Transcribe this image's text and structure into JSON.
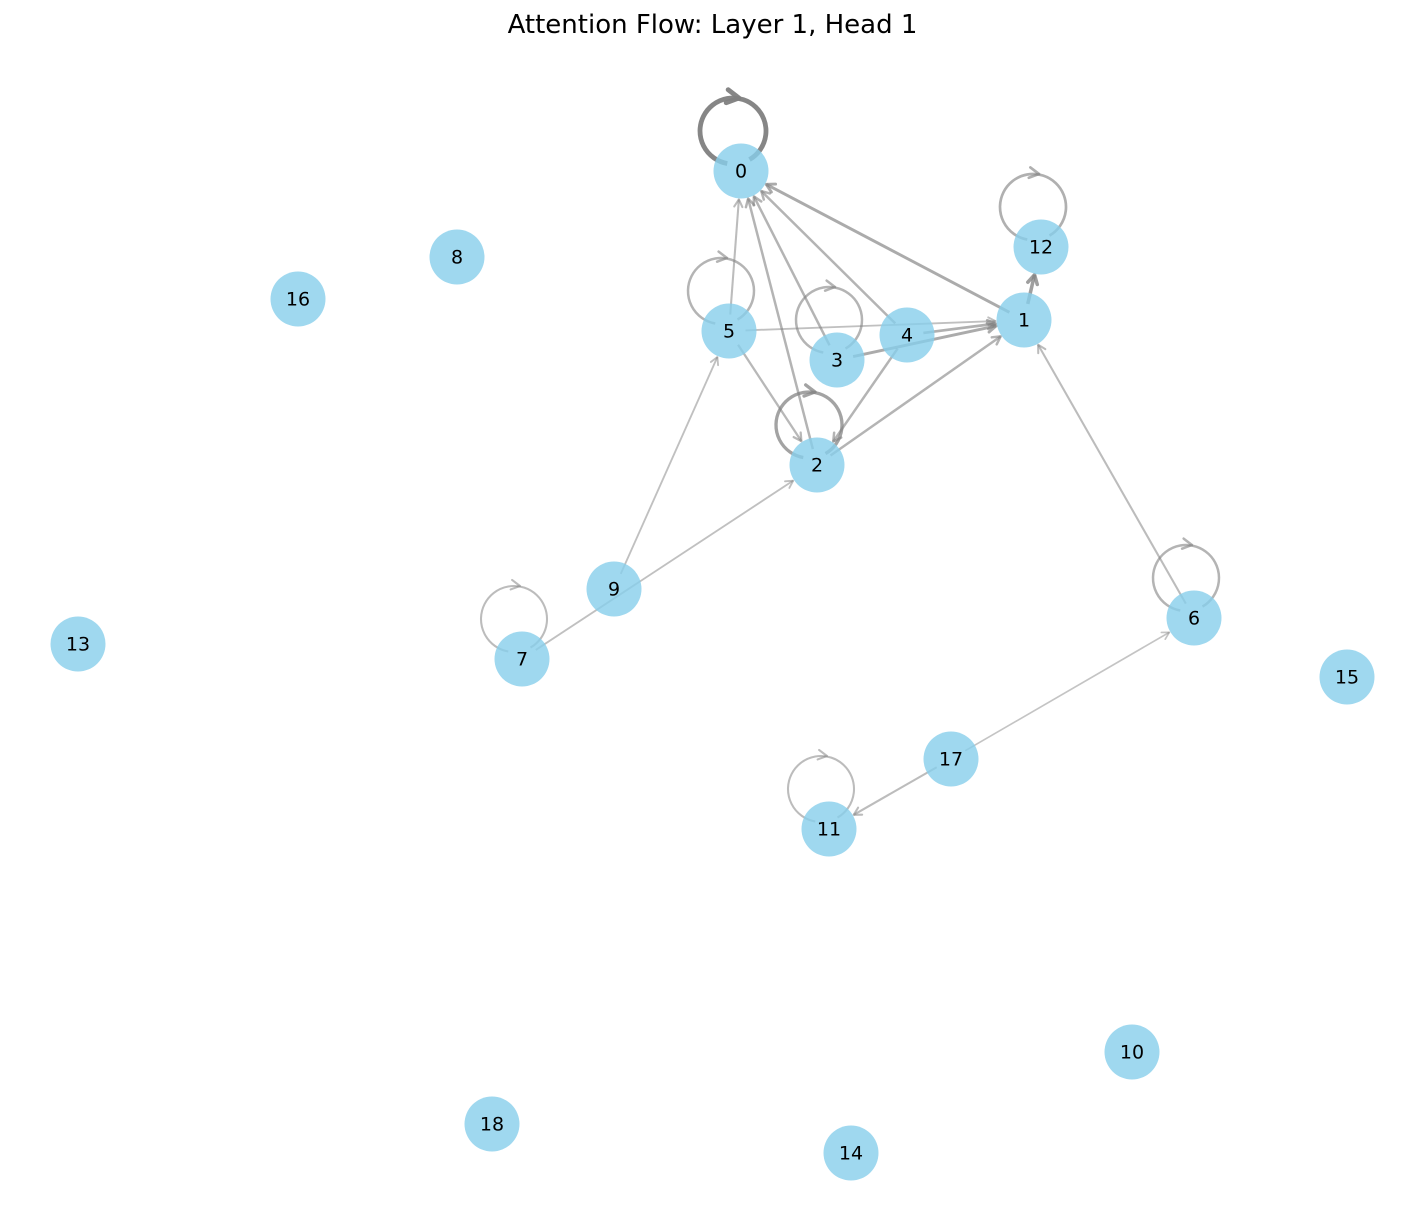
{
  "title": "Attention Flow: Layer 1, Head 1",
  "node_color": "#87ceeb",
  "edge_color": "#808080",
  "nodes": [
    {
      "id": "0"
    },
    {
      "id": "1"
    },
    {
      "id": "2"
    },
    {
      "id": "3"
    },
    {
      "id": "4"
    },
    {
      "id": "5"
    },
    {
      "id": "6"
    },
    {
      "id": "7"
    },
    {
      "id": "8"
    },
    {
      "id": "9"
    },
    {
      "id": "10"
    },
    {
      "id": "11"
    },
    {
      "id": "12"
    },
    {
      "id": "13"
    },
    {
      "id": "14"
    },
    {
      "id": "15"
    },
    {
      "id": "16"
    },
    {
      "id": "17"
    },
    {
      "id": "18"
    }
  ],
  "edges": [
    {
      "source": "0",
      "target": "0",
      "weight": 1.0
    },
    {
      "source": "12",
      "target": "12",
      "weight": 0.5
    },
    {
      "source": "1",
      "target": "12",
      "weight": 0.7
    },
    {
      "source": "5",
      "target": "5",
      "weight": 0.45
    },
    {
      "source": "3",
      "target": "3",
      "weight": 0.45
    },
    {
      "source": "2",
      "target": "2",
      "weight": 0.65
    },
    {
      "source": "7",
      "target": "7",
      "weight": 0.35
    },
    {
      "source": "6",
      "target": "6",
      "weight": 0.45
    },
    {
      "source": "11",
      "target": "11",
      "weight": 0.35
    },
    {
      "source": "1",
      "target": "0",
      "weight": 0.55
    },
    {
      "source": "4",
      "target": "0",
      "weight": 0.45
    },
    {
      "source": "3",
      "target": "0",
      "weight": 0.45
    },
    {
      "source": "2",
      "target": "0",
      "weight": 0.45
    },
    {
      "source": "5",
      "target": "0",
      "weight": 0.35
    },
    {
      "source": "3",
      "target": "1",
      "weight": 0.55
    },
    {
      "source": "4",
      "target": "1",
      "weight": 0.5
    },
    {
      "source": "5",
      "target": "1",
      "weight": 0.3
    },
    {
      "source": "2",
      "target": "1",
      "weight": 0.45
    },
    {
      "source": "6",
      "target": "1",
      "weight": 0.35
    },
    {
      "source": "5",
      "target": "2",
      "weight": 0.4
    },
    {
      "source": "4",
      "target": "2",
      "weight": 0.45
    },
    {
      "source": "9",
      "target": "5",
      "weight": 0.3
    },
    {
      "source": "7",
      "target": "2",
      "weight": 0.3
    },
    {
      "source": "17",
      "target": "6",
      "weight": 0.25
    },
    {
      "source": "17",
      "target": "11",
      "weight": 0.35
    }
  ]
}
